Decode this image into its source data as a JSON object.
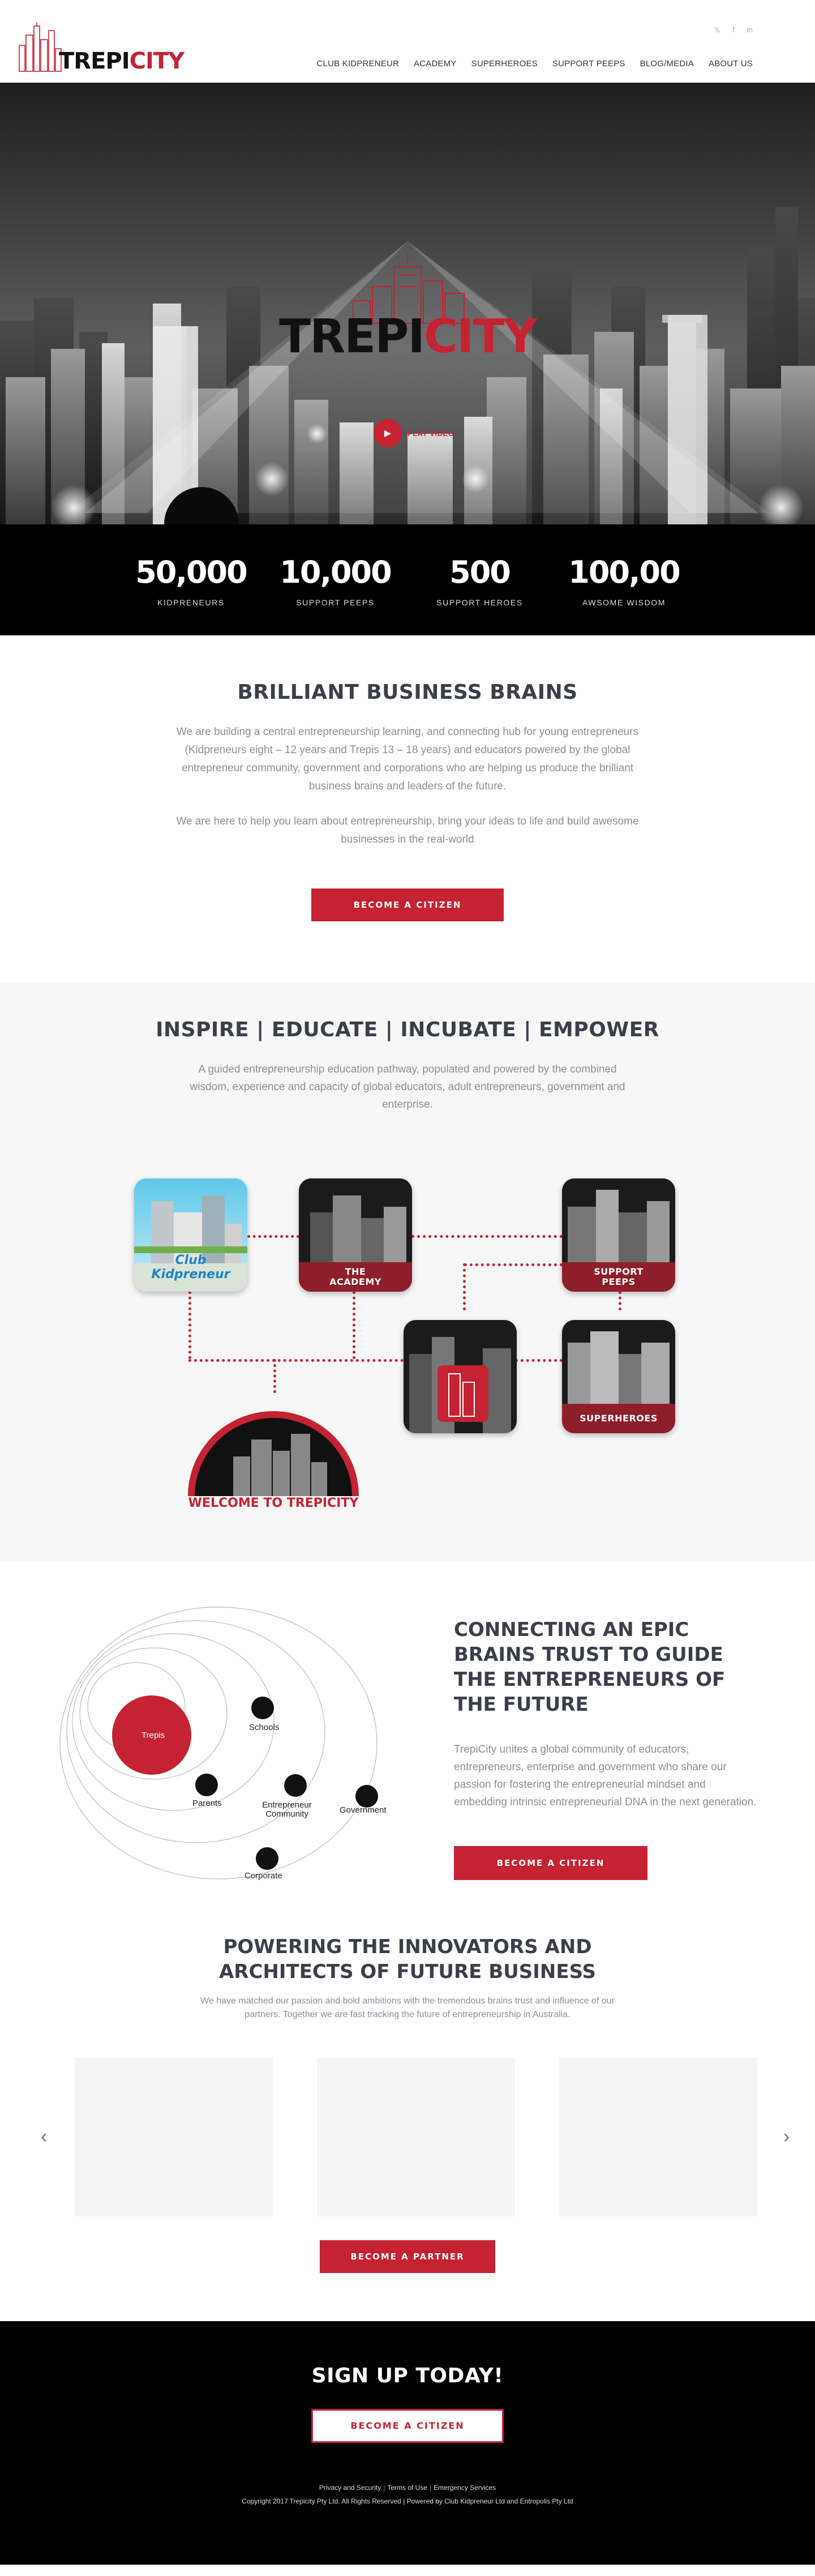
{
  "header": {
    "logo": {
      "part1": "TREPI",
      "part2": "CITY"
    },
    "social": [
      "twitter-icon",
      "facebook-icon",
      "linkedin-icon"
    ],
    "nav": [
      "CLUB KIDPRENEUR",
      "ACADEMY",
      "SUPERHEROES",
      "SUPPORT PEEPS",
      "BLOG/MEDIA",
      "ABOUT US"
    ]
  },
  "hero": {
    "title_part1": "TREPI",
    "title_part2": "CITY",
    "play_label": "PLAY VIDEO"
  },
  "stats": [
    {
      "value": "50,000",
      "label": "KIDPRENEURS"
    },
    {
      "value": "10,000",
      "label": "SUPPORT PEEPS"
    },
    {
      "value": "500",
      "label": "SUPPORT HEROES"
    },
    {
      "value": "100,00",
      "label": "AWSOME WISDOM"
    }
  ],
  "intro": {
    "title": "BRILLIANT BUSINESS BRAINS",
    "paragraph1": "We are building a central entrepreneurship learning, and connecting hub for young entrepreneurs (Kidpreneurs eight – 12 years and Trepis 13 – 18 years) and educators powered by the global entrepreneur community, government and corporations who are helping us produce the brilliant business brains and leaders of the future.",
    "paragraph2": "We are here to help you learn about entrepreneurship, bring your ideas to life and build awesome businesses in the real-world",
    "button": "BECOME A CITIZEN"
  },
  "pathway": {
    "title": "INSPIRE | EDUCATE | INCUBATE | EMPOWER",
    "lead": "A guided entrepreneurship education pathway, populated and powered by the combined wisdom, experience and capacity of global educators, adult entrepreneurs, government and enterprise.",
    "club": "Club Kidpreneur",
    "academy_line1": "THE",
    "academy_line2": "ACADEMY",
    "support_line1": "SUPPORT",
    "support_line2": "PEEPS",
    "superheroes": "SUPERHEROES",
    "welcome": "WELCOME TO TREPICITY"
  },
  "brains": {
    "title": "CONNECTING AN EPIC BRAINS TRUST TO GUIDE THE ENTREPRENEURS OF THE FUTURE",
    "paragraph": "TrepiCity unites a global community of educators, entrepreneurs, enterprise and government who share our passion for fostering the entrepreneurial mindset and embedding intrinsic entrepreneurial DNA in the next generation.",
    "button": "BECOME A CITIZEN",
    "orbit": {
      "center": "Trepis",
      "schools": "Schools",
      "parents": "Parents",
      "community": "Entrepreneur Community",
      "government": "Government",
      "corporate": "Corporate"
    }
  },
  "partners": {
    "title": "POWERING THE INNOVATORS AND ARCHITECTS OF FUTURE BUSINESS",
    "paragraph": "We have matched our passion and bold ambitions with the tremendous brains trust and influence of our partners. Together we are fast tracking the future of entrepreneurship in Australia.",
    "button": "BECOME A PARTNER",
    "prev": "‹",
    "next": "›"
  },
  "signup": {
    "title": "SIGN UP TODAY!",
    "button": "BECOME A CITIZEN",
    "links": [
      "Privacy and Security",
      "Terms of Use",
      "Emergency Services"
    ],
    "copyright": "Copyright 2017 Trepicity Pty Ltd. All Rights Reserved | Powered by Club Kidpreneur Ltd and Entropolis Pty Ltd"
  },
  "colors": {
    "accent": "#c52233",
    "dark": "#3a3f4a",
    "muted": "#8a8e96"
  }
}
